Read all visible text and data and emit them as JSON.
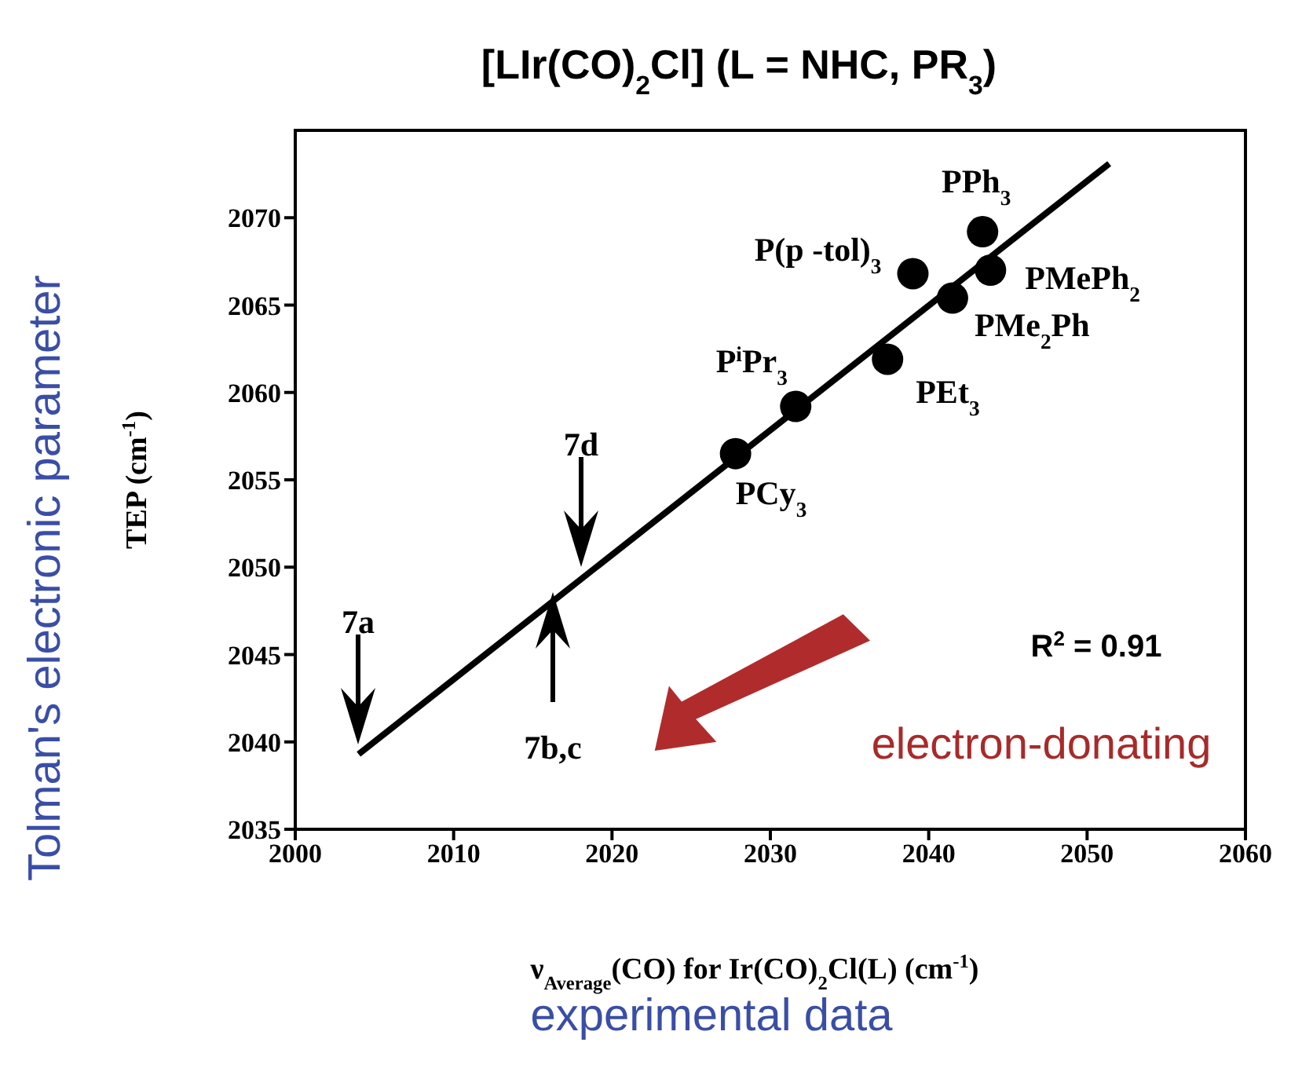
{
  "chart_data": {
    "type": "scatter",
    "title": "[LIr(CO)$_{2}$Cl] (L = NHC, PR$_{3}$)",
    "xlabel": "ν$_{Average}$(CO) for Ir(CO)$_{2}$Cl(L) (cm$^{-1}$)",
    "ylabel": "TEP (cm$^{-1}$)",
    "xlim": [
      2000,
      2060
    ],
    "xticks": [
      2000,
      2010,
      2020,
      2030,
      2040,
      2050,
      2060
    ],
    "ylim": [
      2035,
      2075
    ],
    "yticks": [
      2035,
      2040,
      2045,
      2050,
      2055,
      2060,
      2065,
      2070
    ],
    "grid": false,
    "marker": "circle",
    "series": [
      {
        "color": "#000000",
        "x": [
          2027.8,
          2031.6,
          2037.4,
          2039.0,
          2041.5,
          2043.4,
          2043.9
        ],
        "values": [
          2056.5,
          2059.2,
          2061.9,
          2066.8,
          2065.4,
          2069.2,
          2067.0
        ]
      },
      {
        "type": "line",
        "marker": "none",
        "color": "#000000",
        "line_style": "solid",
        "x": [
          2004.0,
          2051.4
        ],
        "values": [
          2039.3,
          2073.1
        ]
      }
    ],
    "annotations": [
      "R$^{2}$ = 0.91",
      "electron-donating",
      "Tolman's electronic parameter",
      "experimental data",
      {
        "text": "PCy$_{3}$",
        "x": 2027.8,
        "y": 2056.5
      },
      {
        "text": "P$^{i}$Pr$_{3}$",
        "x": 2031.6,
        "y": 2059.2
      },
      {
        "text": "PEt$_{3}$",
        "x": 2037.4,
        "y": 2061.9
      },
      {
        "text": "P(p -tol)$_{3}$",
        "x": 2039.0,
        "y": 2066.8
      },
      {
        "text": "PMe$_{2}$Ph",
        "x": 2041.5,
        "y": 2065.4
      },
      {
        "text": "PPh$_{3}$",
        "x": 2043.4,
        "y": 2069.2
      },
      {
        "text": "PMePh$_{2}$",
        "x": 2043.9,
        "y": 2067.0
      },
      "7a",
      "7d",
      "7b,c"
    ]
  }
}
